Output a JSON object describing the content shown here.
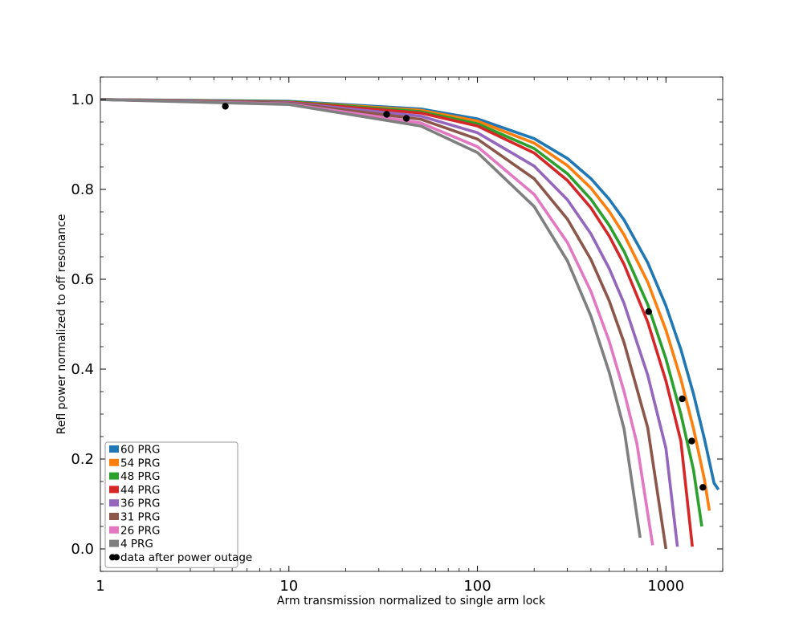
{
  "chart_data": {
    "type": "line",
    "title": "",
    "xlabel": "Arm transmission normalized to single arm lock",
    "ylabel": "Refl power normalized to off resonance",
    "xscale": "log",
    "xlim": [
      1,
      2000
    ],
    "ylim": [
      -0.05,
      1.05
    ],
    "x_ticks": [
      1,
      10,
      100,
      1000
    ],
    "x_tick_labels": [
      "1",
      "10",
      "100",
      "1000"
    ],
    "y_ticks": [
      0.0,
      0.2,
      0.4,
      0.6,
      0.8,
      1.0
    ],
    "y_tick_labels": [
      "0.0",
      "0.2",
      "0.4",
      "0.6",
      "0.8",
      "1.0"
    ],
    "grid": false,
    "legend_position": "lower-left",
    "series": [
      {
        "name": "60 PRG",
        "color": "#1f77b4",
        "x": [
          1,
          10,
          50,
          100,
          200,
          300,
          400,
          500,
          600,
          800,
          1000,
          1200,
          1400,
          1600,
          1800,
          1900
        ],
        "y": [
          1.0,
          0.996,
          0.979,
          0.957,
          0.913,
          0.869,
          0.824,
          0.778,
          0.732,
          0.637,
          0.541,
          0.444,
          0.345,
          0.245,
          0.146,
          0.132
        ]
      },
      {
        "name": "54 PRG",
        "color": "#ff7f0e",
        "x": [
          1,
          10,
          50,
          100,
          200,
          300,
          400,
          500,
          600,
          800,
          1000,
          1200,
          1400,
          1600,
          1700
        ],
        "y": [
          1.0,
          0.995,
          0.976,
          0.952,
          0.903,
          0.853,
          0.803,
          0.751,
          0.699,
          0.594,
          0.487,
          0.378,
          0.268,
          0.155,
          0.085
        ]
      },
      {
        "name": "48 PRG",
        "color": "#2ca02c",
        "x": [
          1,
          10,
          50,
          100,
          200,
          300,
          400,
          500,
          600,
          800,
          1000,
          1200,
          1400,
          1550
        ],
        "y": [
          1.0,
          0.995,
          0.973,
          0.946,
          0.891,
          0.835,
          0.778,
          0.72,
          0.662,
          0.544,
          0.423,
          0.3,
          0.176,
          0.05
        ]
      },
      {
        "name": "44 PRG",
        "color": "#d62728",
        "x": [
          1,
          10,
          50,
          100,
          200,
          300,
          400,
          500,
          600,
          800,
          1000,
          1200,
          1380
        ],
        "y": [
          1.0,
          0.994,
          0.97,
          0.941,
          0.881,
          0.82,
          0.759,
          0.696,
          0.633,
          0.505,
          0.374,
          0.24,
          0.005
        ]
      },
      {
        "name": "36 PRG",
        "color": "#9467bd",
        "x": [
          1,
          10,
          50,
          100,
          200,
          300,
          400,
          500,
          600,
          800,
          1000,
          1150
        ],
        "y": [
          1.0,
          0.993,
          0.963,
          0.926,
          0.852,
          0.777,
          0.701,
          0.624,
          0.546,
          0.387,
          0.224,
          0.005
        ]
      },
      {
        "name": "31 PRG",
        "color": "#8c564b",
        "x": [
          1,
          10,
          50,
          100,
          200,
          300,
          400,
          500,
          600,
          800,
          1000
        ],
        "y": [
          1.0,
          0.992,
          0.956,
          0.912,
          0.824,
          0.734,
          0.644,
          0.552,
          0.459,
          0.27,
          0.0
        ]
      },
      {
        "name": "26 PRG",
        "color": "#e377c2",
        "x": [
          1,
          10,
          50,
          100,
          200,
          300,
          400,
          500,
          600,
          700,
          850
        ],
        "y": [
          1.0,
          0.99,
          0.948,
          0.895,
          0.789,
          0.682,
          0.573,
          0.462,
          0.35,
          0.236,
          0.008
        ]
      },
      {
        "name": "4 PRG",
        "color": "#7f7f7f",
        "x": [
          1,
          10,
          50,
          100,
          200,
          300,
          400,
          500,
          600,
          730
        ],
        "y": [
          1.0,
          0.989,
          0.941,
          0.882,
          0.762,
          0.641,
          0.518,
          0.393,
          0.267,
          0.025
        ]
      }
    ],
    "scatter": {
      "name": "data after power outage",
      "color": "#000000",
      "x": [
        4.6,
        33,
        42,
        810,
        1220,
        1370,
        1570
      ],
      "y": [
        0.985,
        0.967,
        0.958,
        0.528,
        0.334,
        0.24,
        0.137
      ]
    }
  }
}
